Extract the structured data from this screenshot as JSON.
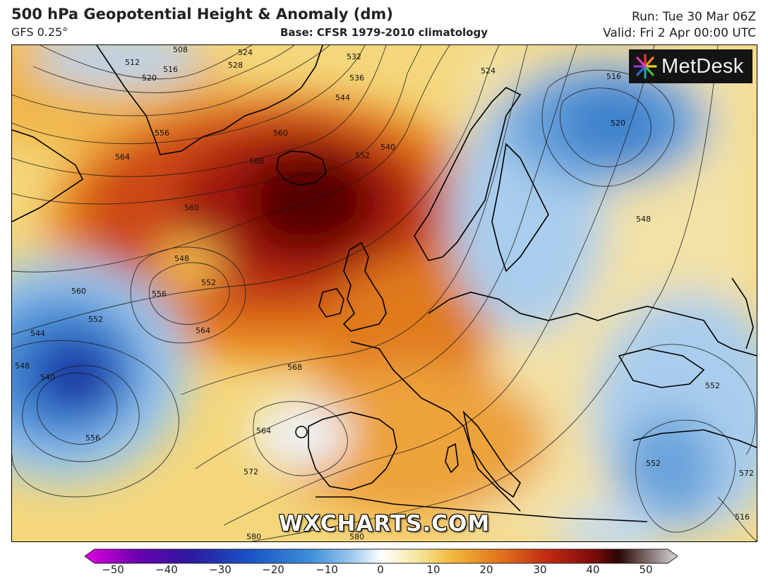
{
  "header": {
    "title": "500 hPa Geopotential Height & Anomaly (dm)",
    "model": "GFS 0.25°",
    "base": "Base: CFSR 1979-2010 climatology",
    "run": "Run: Tue 30 Mar 06Z",
    "valid": "Valid: Fri 2 Apr 00:00 UTC"
  },
  "logo": {
    "text": "MetDesk",
    "icon": "starburst-logo-icon"
  },
  "watermark": "WXCHARTS.COM",
  "colorbar": {
    "ticks": [
      "−50",
      "−40",
      "−30",
      "−20",
      "−10",
      "0",
      "10",
      "20",
      "30",
      "40",
      "50"
    ],
    "range": [
      -50,
      50
    ],
    "colors": [
      "#e000e0",
      "#6a00b0",
      "#2a1aa0",
      "#1a55c8",
      "#3c8ed8",
      "#9cc8ec",
      "#ffffff",
      "#f6e7a0",
      "#f2b93c",
      "#e2741c",
      "#c22a12",
      "#7a0a08",
      "#2a0504",
      "#d8d8d8"
    ]
  },
  "contour_labels": [
    "508",
    "512",
    "516",
    "520",
    "524",
    "528",
    "532",
    "536",
    "544",
    "552",
    "540",
    "524",
    "516",
    "520",
    "556",
    "560",
    "564",
    "560",
    "568",
    "548",
    "552",
    "556",
    "560",
    "552",
    "544",
    "548",
    "540",
    "564",
    "568",
    "564",
    "556",
    "572",
    "580",
    "580",
    "548",
    "552",
    "552",
    "572",
    "516"
  ]
}
